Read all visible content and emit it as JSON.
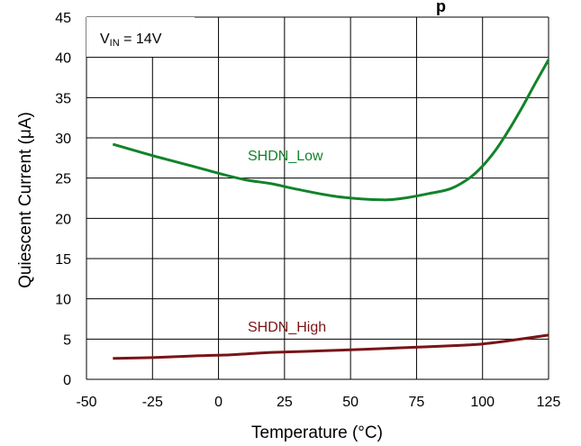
{
  "chart_data": {
    "type": "line",
    "title": "",
    "xlabel": "Temperature (°C)",
    "ylabel": "Quiescent Current (μA)",
    "xlim": [
      -50,
      125
    ],
    "ylim": [
      0,
      45
    ],
    "x_ticks": [
      -50,
      -25,
      0,
      25,
      50,
      75,
      100,
      125
    ],
    "y_ticks": [
      0,
      5,
      10,
      15,
      20,
      25,
      30,
      35,
      40,
      45
    ],
    "grid": true,
    "annotation": {
      "text": "V",
      "subscript": "IN",
      "suffix": " = 14V"
    },
    "series": [
      {
        "name": "SHDN_Low",
        "color": "#12832b",
        "x": [
          -40,
          -25,
          -10,
          0,
          10,
          20,
          30,
          45,
          62,
          70,
          80,
          88,
          95,
          100,
          105,
          110,
          115,
          120,
          125
        ],
        "values": [
          29.2,
          27.8,
          26.5,
          25.6,
          24.8,
          24.3,
          23.6,
          22.7,
          22.3,
          22.5,
          23.1,
          23.7,
          25.0,
          26.5,
          28.5,
          31.0,
          33.8,
          36.8,
          39.7
        ]
      },
      {
        "name": "SHDN_High",
        "color": "#7a1416",
        "x": [
          -40,
          -25,
          -10,
          -5,
          0,
          5,
          10,
          20,
          40,
          60,
          80,
          90,
          100,
          110,
          125
        ],
        "values": [
          2.6,
          2.7,
          2.9,
          2.95,
          3.0,
          3.05,
          3.15,
          3.35,
          3.55,
          3.8,
          4.05,
          4.2,
          4.4,
          4.8,
          5.5
        ]
      }
    ]
  },
  "title_fragment": "p"
}
